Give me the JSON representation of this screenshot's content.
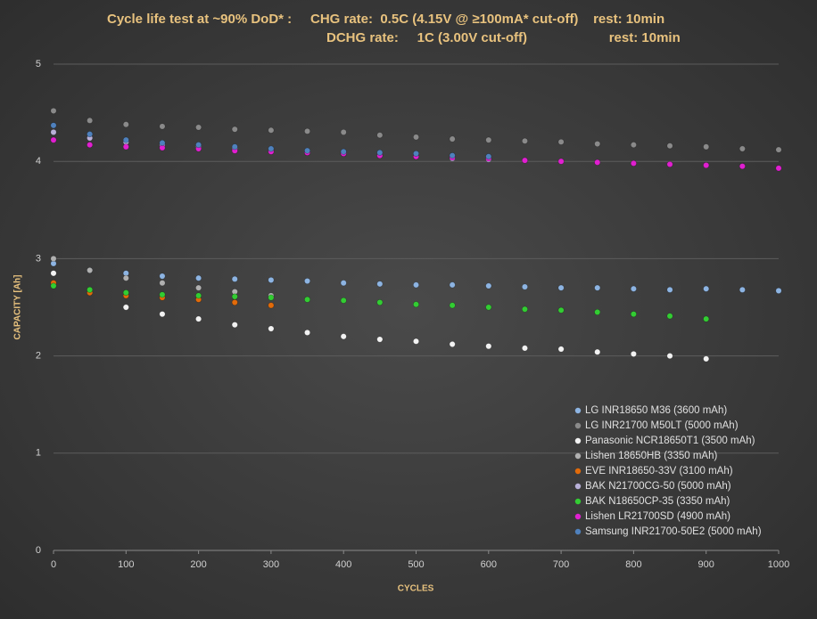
{
  "chart_data": {
    "type": "scatter",
    "title": "Cycle life test at ~90% DoD* :     CHG rate:  0.5C (4.15V @ ≥100mA* cut-off)    rest: 10min",
    "subtitle": "DCHG rate:     1C (3.00V cut-off)                      rest: 10min",
    "x_label": "CYCLES",
    "y_label": "CAPACITY [Ah]",
    "xlim": [
      0,
      1000
    ],
    "xticks": [
      0,
      100,
      200,
      300,
      400,
      500,
      600,
      700,
      800,
      900,
      1000
    ],
    "ylim": [
      0,
      5
    ],
    "yticks": [
      0,
      1,
      2,
      3,
      4,
      5
    ],
    "grid": true,
    "legend": "lower right",
    "x": [
      0,
      50,
      100,
      150,
      200,
      250,
      300,
      350,
      400,
      450,
      500,
      550,
      600,
      650,
      700,
      750,
      800,
      850,
      900,
      950,
      1000
    ],
    "series": [
      {
        "name": "LG INR18650 M36 (3600 mAh)",
        "color": "#8db4e2",
        "values": [
          2.95,
          2.88,
          2.85,
          2.82,
          2.8,
          2.79,
          2.78,
          2.77,
          2.75,
          2.74,
          2.73,
          2.73,
          2.72,
          2.71,
          2.7,
          2.7,
          2.69,
          2.68,
          2.69,
          2.68,
          2.67
        ]
      },
      {
        "name": "LG INR21700 M50LT (5000 mAh)",
        "color": "#8a8a8a",
        "values": [
          4.52,
          4.42,
          4.38,
          4.36,
          4.35,
          4.33,
          4.32,
          4.31,
          4.3,
          4.27,
          4.25,
          4.23,
          4.22,
          4.21,
          4.2,
          4.18,
          4.17,
          4.16,
          4.15,
          4.13,
          4.12
        ]
      },
      {
        "name": "Panasonic NCR18650T1 (3500 mAh)",
        "color": "#f2f2f2",
        "values": [
          2.85,
          2.65,
          2.5,
          2.43,
          2.38,
          2.32,
          2.28,
          2.24,
          2.2,
          2.17,
          2.15,
          2.12,
          2.1,
          2.08,
          2.07,
          2.04,
          2.02,
          2.0,
          1.97,
          null,
          null
        ]
      },
      {
        "name": "Lishen 18650HB (3350 mAh)",
        "color": "#b0b0b0",
        "values": [
          3.0,
          2.88,
          2.8,
          2.75,
          2.7,
          2.66,
          2.62,
          null,
          null,
          null,
          null,
          null,
          null,
          null,
          null,
          null,
          null,
          null,
          null,
          null,
          null
        ]
      },
      {
        "name": "EVE INR18650-33V (3100 mAh)",
        "color": "#e26b0a",
        "values": [
          2.75,
          2.65,
          2.62,
          2.6,
          2.58,
          2.55,
          2.52,
          null,
          null,
          null,
          null,
          null,
          null,
          null,
          null,
          null,
          null,
          null,
          null,
          null,
          null
        ]
      },
      {
        "name": "BAK N21700CG-50 (5000 mAh)",
        "color": "#b8b0d8",
        "values": [
          4.3,
          4.24,
          4.2,
          4.17,
          4.15,
          4.13,
          4.11,
          4.09,
          4.08,
          4.06,
          4.05,
          4.03,
          4.02,
          null,
          null,
          null,
          null,
          null,
          null,
          null,
          null
        ]
      },
      {
        "name": "BAK N18650CP-35 (3350 mAh)",
        "color": "#33cc33",
        "values": [
          2.72,
          2.68,
          2.65,
          2.63,
          2.62,
          2.61,
          2.6,
          2.58,
          2.57,
          2.55,
          2.53,
          2.52,
          2.5,
          2.48,
          2.47,
          2.45,
          2.43,
          2.41,
          2.38,
          null,
          null
        ]
      },
      {
        "name": "Lishen LR21700SD (4900 mAh)",
        "color": "#e020d0",
        "values": [
          4.22,
          4.17,
          4.15,
          4.14,
          4.13,
          4.11,
          4.1,
          4.09,
          4.08,
          4.06,
          4.05,
          4.04,
          4.03,
          4.01,
          4.0,
          3.99,
          3.98,
          3.97,
          3.96,
          3.95,
          3.93
        ]
      },
      {
        "name": "Samsung INR21700-50E2 (5000 mAh)",
        "color": "#4f81bd",
        "values": [
          4.37,
          4.28,
          4.22,
          4.19,
          4.17,
          4.15,
          4.13,
          4.11,
          4.1,
          4.09,
          4.08,
          4.06,
          4.05,
          null,
          null,
          null,
          null,
          null,
          null,
          null,
          null
        ]
      }
    ]
  }
}
